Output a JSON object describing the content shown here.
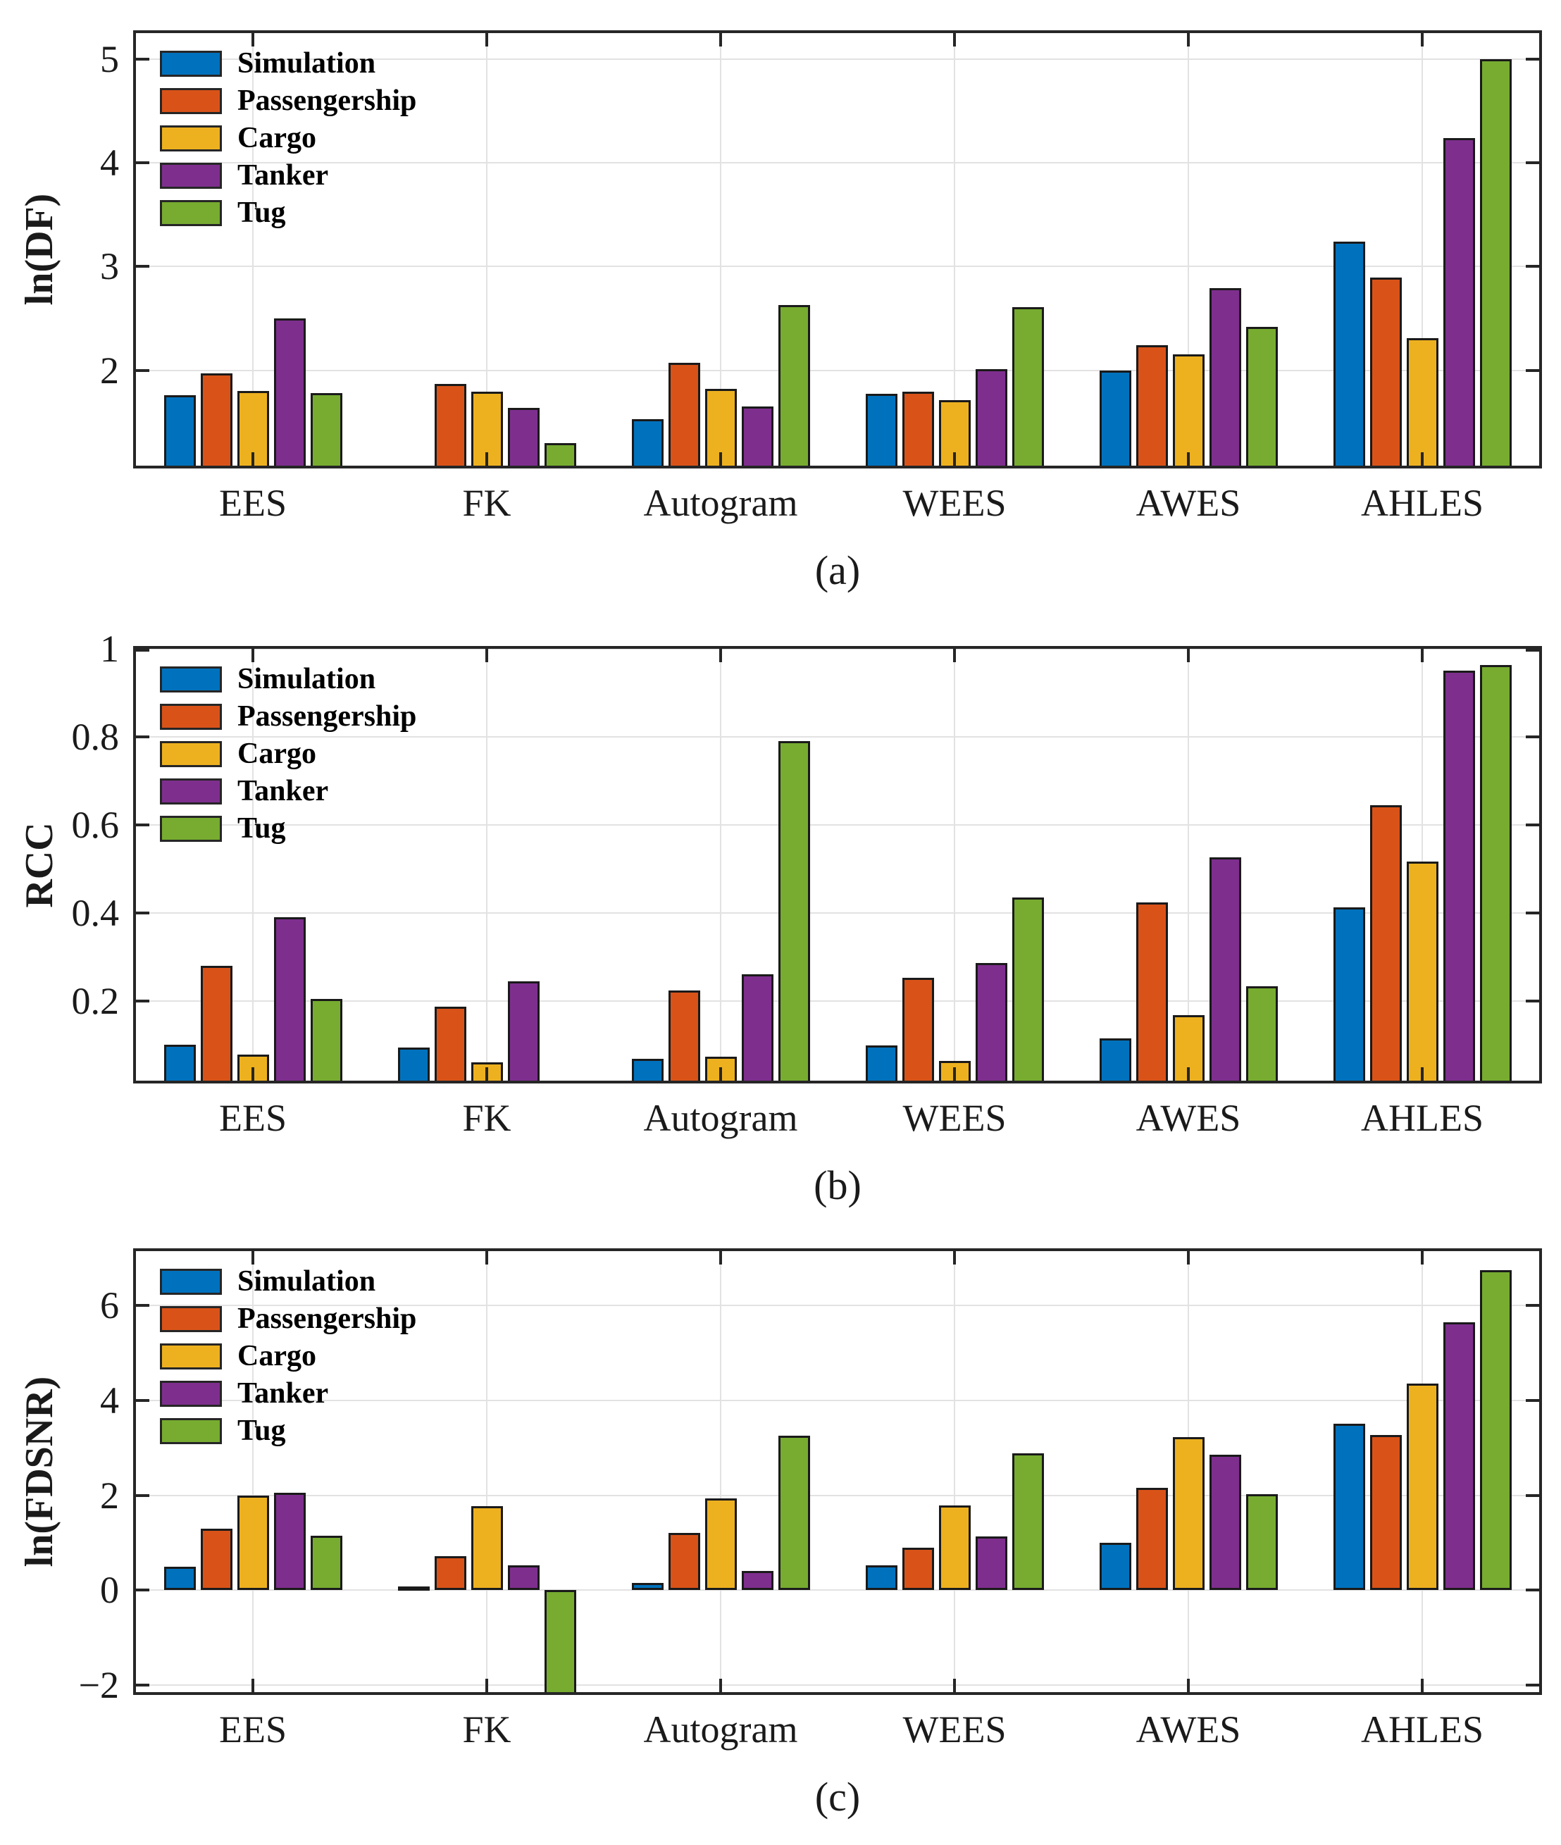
{
  "figure": {
    "background": "#ffffff",
    "frame_color": "#262626",
    "grid_color": "#e2e2e2",
    "panel_labels": [
      "(a)",
      "(b)",
      "(c)"
    ]
  },
  "legend": {
    "position": "top-left",
    "entries": [
      {
        "label": "Simulation",
        "color": "#0072BD"
      },
      {
        "label": "Passengership",
        "color": "#D95319"
      },
      {
        "label": "Cargo",
        "color": "#EDB120"
      },
      {
        "label": "Tanker",
        "color": "#7E2F8E"
      },
      {
        "label": "Tug",
        "color": "#77AC30"
      }
    ]
  },
  "chart_data": [
    {
      "type": "bar",
      "panel_label": "(a)",
      "title": "",
      "xlabel": "",
      "ylabel": "ln(DF)",
      "categories": [
        "EES",
        "FK",
        "Autogram",
        "WEES",
        "AWES",
        "AHLES"
      ],
      "series": [
        {
          "name": "Simulation",
          "values": [
            1.76,
            null,
            1.53,
            1.77,
            2.0,
            3.24
          ]
        },
        {
          "name": "Passengership",
          "values": [
            1.97,
            1.87,
            2.07,
            1.79,
            2.24,
            2.89
          ]
        },
        {
          "name": "Cargo",
          "values": [
            1.8,
            1.79,
            1.82,
            1.71,
            2.15,
            2.31
          ]
        },
        {
          "name": "Tanker",
          "values": [
            2.5,
            1.64,
            1.65,
            2.01,
            2.79,
            4.24
          ]
        },
        {
          "name": "Tug",
          "values": [
            1.78,
            1.3,
            2.63,
            2.61,
            2.42,
            5.0
          ]
        }
      ],
      "ylim": [
        1.08,
        5.25
      ],
      "yticks": [
        2,
        3,
        4,
        5
      ],
      "ytick_labels": [
        "2",
        "3",
        "4",
        "5"
      ],
      "grid": true,
      "legend_position": "top-left"
    },
    {
      "type": "bar",
      "panel_label": "(b)",
      "title": "",
      "xlabel": "",
      "ylabel": "RCC",
      "categories": [
        "EES",
        "FK",
        "Autogram",
        "WEES",
        "AWES",
        "AHLES"
      ],
      "series": [
        {
          "name": "Simulation",
          "values": [
            0.1,
            0.094,
            0.069,
            0.099,
            0.115,
            0.412
          ]
        },
        {
          "name": "Passengership",
          "values": [
            0.28,
            0.187,
            0.224,
            0.252,
            0.424,
            0.644
          ]
        },
        {
          "name": "Cargo",
          "values": [
            0.078,
            0.061,
            0.074,
            0.064,
            0.168,
            0.516
          ]
        },
        {
          "name": "Tanker",
          "values": [
            0.39,
            0.245,
            0.26,
            0.286,
            0.527,
            0.95
          ]
        },
        {
          "name": "Tug",
          "values": [
            0.205,
            null,
            0.79,
            0.435,
            0.233,
            0.963
          ]
        }
      ],
      "ylim": [
        0.019,
        1.0
      ],
      "yticks": [
        0.2,
        0.4,
        0.6,
        0.8,
        1
      ],
      "ytick_labels": [
        "0.2",
        "0.4",
        "0.6",
        "0.8",
        "1"
      ],
      "grid": true,
      "legend_position": "top-left"
    },
    {
      "type": "bar",
      "panel_label": "(c)",
      "title": "",
      "xlabel": "",
      "ylabel": "ln(FDSNR)",
      "categories": [
        "EES",
        "FK",
        "Autogram",
        "WEES",
        "AWES",
        "AHLES"
      ],
      "series": [
        {
          "name": "Simulation",
          "values": [
            0.5,
            0.08,
            0.15,
            0.52,
            1.0,
            3.51
          ]
        },
        {
          "name": "Passengership",
          "values": [
            1.3,
            0.72,
            1.21,
            0.9,
            2.16,
            3.27
          ]
        },
        {
          "name": "Cargo",
          "values": [
            2.0,
            1.77,
            1.93,
            1.78,
            3.23,
            4.35
          ]
        },
        {
          "name": "Tanker",
          "values": [
            2.05,
            0.52,
            0.41,
            1.13,
            2.85,
            5.65
          ]
        },
        {
          "name": "Tug",
          "values": [
            1.15,
            -2.2,
            3.26,
            2.89,
            2.02,
            6.75
          ]
        }
      ],
      "ylim": [
        -2.15,
        7.15
      ],
      "yticks": [
        -2,
        0,
        2,
        4,
        6
      ],
      "ytick_labels": [
        "−2",
        "0",
        "2",
        "4",
        "6"
      ],
      "grid": true,
      "legend_position": "top-left",
      "note_clipped": "FK Tug bar extends below axis minimum (clipped)"
    }
  ]
}
